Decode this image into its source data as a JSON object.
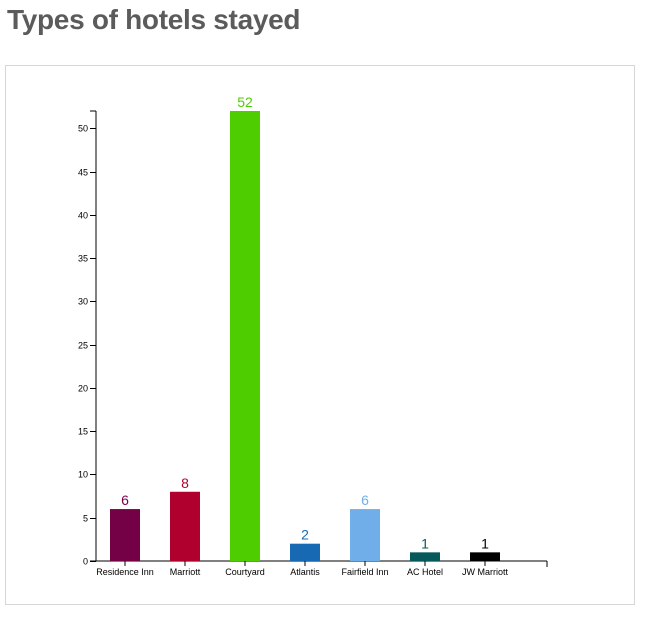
{
  "page": {
    "title": "Types of hotels stayed"
  },
  "chart_data": {
    "type": "bar",
    "title": "",
    "xlabel": "",
    "ylabel": "",
    "categories": [
      "Residence Inn",
      "Marriott",
      "Courtyard",
      "Atlantis",
      "Fairfield Inn",
      "AC Hotel",
      "JW Marriott"
    ],
    "values": [
      6,
      8,
      52,
      2,
      6,
      1,
      1
    ],
    "colors": [
      "#740046",
      "#b0002e",
      "#4ece00",
      "#1769b4",
      "#6faee9",
      "#06595a",
      "#000000"
    ],
    "ylim": [
      0,
      52
    ],
    "yticks": [
      0,
      5,
      10,
      15,
      20,
      25,
      30,
      35,
      40,
      45,
      50
    ],
    "grid": false,
    "legend": "none",
    "data_labels": true
  }
}
